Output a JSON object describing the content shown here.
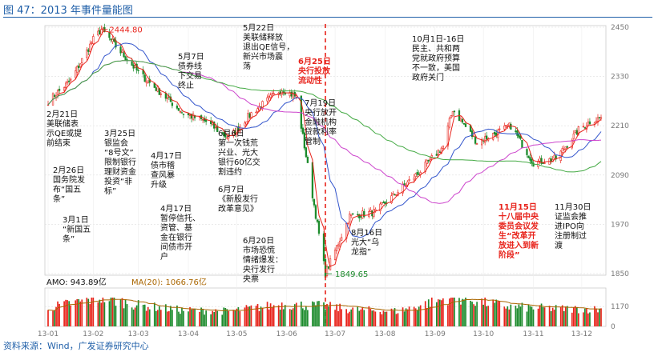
{
  "figure": {
    "title": "图 47：2013 年事件量能图",
    "source": "资料来源：Wind，广发证券研究中心"
  },
  "chart_data": {
    "type": "line",
    "series": [
      {
        "x": [
          "2013-01-04",
          "2013-01-18",
          "2013-02-01",
          "2013-02-06",
          "2013-02-18",
          "2013-03-01",
          "2013-03-15",
          "2013-03-29",
          "2013-04-12",
          "2013-04-26",
          "2013-05-10",
          "2013-05-29",
          "2013-06-07",
          "2013-06-25",
          "2013-07-10",
          "2013-07-26",
          "2013-08-09",
          "2013-08-23",
          "2013-09-06",
          "2013-09-12",
          "2013-09-27",
          "2013-10-18",
          "2013-11-01",
          "2013-11-15",
          "2013-11-29",
          "2013-12-06",
          "2013-12-13"
        ],
        "values": [
          2270,
          2320,
          2420,
          2444.8,
          2390,
          2340,
          2290,
          2240,
          2220,
          2180,
          2240,
          2300,
          2280,
          1849.65,
          1990,
          2000,
          2050,
          2100,
          2160,
          2250,
          2170,
          2210,
          2120,
          2130,
          2200,
          2220,
          2230
        ]
      }
    ],
    "amo_series": [
      {
        "x": [
          "2013-01-04",
          "2013-02-06",
          "2013-03-01",
          "2013-03-29",
          "2013-04-26",
          "2013-05-29",
          "2013-06-25",
          "2013-07-10",
          "2013-08-09",
          "2013-09-12",
          "2013-10-18",
          "2013-11-15",
          "2013-12-13"
        ],
        "values": [
          1100,
          1700,
          1250,
          950,
          900,
          1300,
          1200,
          1000,
          900,
          1750,
          1150,
          1050,
          1000
        ]
      }
    ],
    "x_ticks": [
      "13-01",
      "13-02",
      "13-03",
      "13-04",
      "13-05",
      "13-06",
      "13-07",
      "13-08",
      "13-09",
      "13-10",
      "13-11",
      "13-12"
    ],
    "y_ticks": [
      2450,
      2330,
      2210,
      2090,
      1970,
      1850
    ],
    "ylim": [
      1850,
      2450
    ],
    "amo_ticks": [
      1170,
      0
    ],
    "amo_ylim": [
      0,
      1700
    ],
    "high_label": "2444.80",
    "low_label": "1849.65",
    "amo_label": "AMO: 943.89亿",
    "amo_ma_label": "MA(20): 1066.76亿",
    "event_date": "2013-06-25",
    "colors": {
      "up": "#e8231b",
      "down": "#1a8a2a",
      "ma_blue": "#3355cc",
      "ma_purple": "#cc44cc",
      "ma_green": "#44aa44",
      "dash": "#e8231b"
    }
  },
  "annotations": [
    {
      "id": "ann-feb21",
      "text": "2月21日\n美联储表\n示QE或提\n前结束",
      "x": 58,
      "y": 138,
      "red": false
    },
    {
      "id": "ann-feb26",
      "text": "2月26日\n国务院发\n布“国五\n条”",
      "x": 66,
      "y": 208,
      "red": false
    },
    {
      "id": "ann-mar1",
      "text": "3月1日\n“新国五\n条”",
      "x": 78,
      "y": 270,
      "red": false
    },
    {
      "id": "ann-mar25",
      "text": "3月25日\n银监会\n“8号文”\n限制银行\n理财资金\n投资“非\n标”",
      "x": 130,
      "y": 162,
      "red": false
    },
    {
      "id": "ann-apr17a",
      "text": "4月17日\n债市稽\n查风暴\n升级",
      "x": 188,
      "y": 190,
      "red": false
    },
    {
      "id": "ann-apr17b",
      "text": "4月17日\n暂停信托、\n资管、基\n金在银行\n间债市开\n户",
      "x": 200,
      "y": 256,
      "red": false
    },
    {
      "id": "ann-may7",
      "text": "5月7日\n债券线\n下交易\n终止",
      "x": 222,
      "y": 66,
      "red": false
    },
    {
      "id": "ann-may22",
      "text": "5月22日\n美联储释放\n退出QE信号，\n新兴市场震\n荡",
      "x": 303,
      "y": 30,
      "red": false
    },
    {
      "id": "ann-jun6",
      "text": "6月6日\n第一次钱荒\n兴业、光大\n银行60亿交\n割违约",
      "x": 272,
      "y": 162,
      "red": false
    },
    {
      "id": "ann-jun7",
      "text": "6月7日\n《新股发行\n改革意见》",
      "x": 272,
      "y": 232,
      "red": false
    },
    {
      "id": "ann-jun20",
      "text": "6月20日\n市场恐慌\n情绪爆发：\n央行发行\n央票",
      "x": 303,
      "y": 296,
      "red": false
    },
    {
      "id": "ann-jun25",
      "text": "6月25日\n央行投放\n流动性",
      "x": 372,
      "y": 72,
      "red": true
    },
    {
      "id": "ann-jul19",
      "text": "7月19日\n央行放开\n金融机构\n贷款利率\n管制",
      "x": 380,
      "y": 124,
      "red": false
    },
    {
      "id": "ann-aug16",
      "text": "8月16日\n光大“乌\n龙指”",
      "x": 438,
      "y": 286,
      "red": false
    },
    {
      "id": "ann-oct1",
      "text": "10月1日-16日\n民主、共和两\n党就政府预算\n不一致，美国\n政府关门",
      "x": 514,
      "y": 44,
      "red": false
    },
    {
      "id": "ann-nov15",
      "text": "11月15日\n十八届中央\n委员会议发\n生“改革开\n放进入到新\n阶段”",
      "x": 622,
      "y": 254,
      "red": true
    },
    {
      "id": "ann-nov30",
      "text": "11月30日\n证监会推\n进IPO向\n注册制过\n渡",
      "x": 692,
      "y": 254,
      "red": false
    }
  ]
}
